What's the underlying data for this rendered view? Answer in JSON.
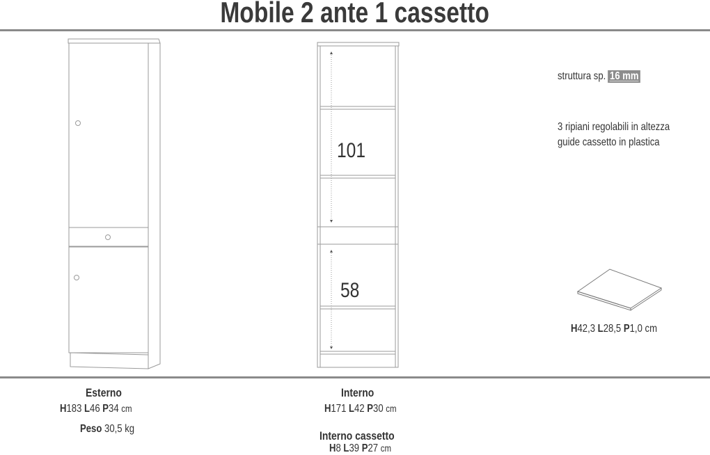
{
  "title": "Mobile 2 ante 1 cassetto",
  "notes": {
    "struttura_label": "struttura sp.",
    "struttura_value": "16 mm",
    "line1": "3 ripiani regolabili in altezza",
    "line2": "guide cassetto in plastica"
  },
  "internal_dimensions": {
    "upper": "101",
    "lower": "58"
  },
  "shelf": {
    "H": "H",
    "h_val": "42,3",
    "L": "L",
    "l_val": "28,5",
    "P": "P",
    "p_val": "1,0",
    "unit": "cm"
  },
  "esterno": {
    "heading": "Esterno",
    "H": "H",
    "h_val": "183",
    "L": "L",
    "l_val": "46",
    "P": "P",
    "p_val": "34",
    "unit": "cm",
    "peso_label": "Peso",
    "peso_val": "30,5 kg"
  },
  "interno": {
    "heading": "Interno",
    "H": "H",
    "h_val": "171",
    "L": "L",
    "l_val": "42",
    "P": "P",
    "p_val": "30",
    "unit": "cm"
  },
  "interno_cassetto": {
    "heading": "Interno cassetto",
    "H": "H",
    "h_val": "8",
    "L": "L",
    "l_val": "39",
    "P": "P",
    "p_val": "27",
    "unit": "cm"
  },
  "colors": {
    "line": "#8a8a8a",
    "badge": "#8c8c8c",
    "text": "#333333"
  }
}
